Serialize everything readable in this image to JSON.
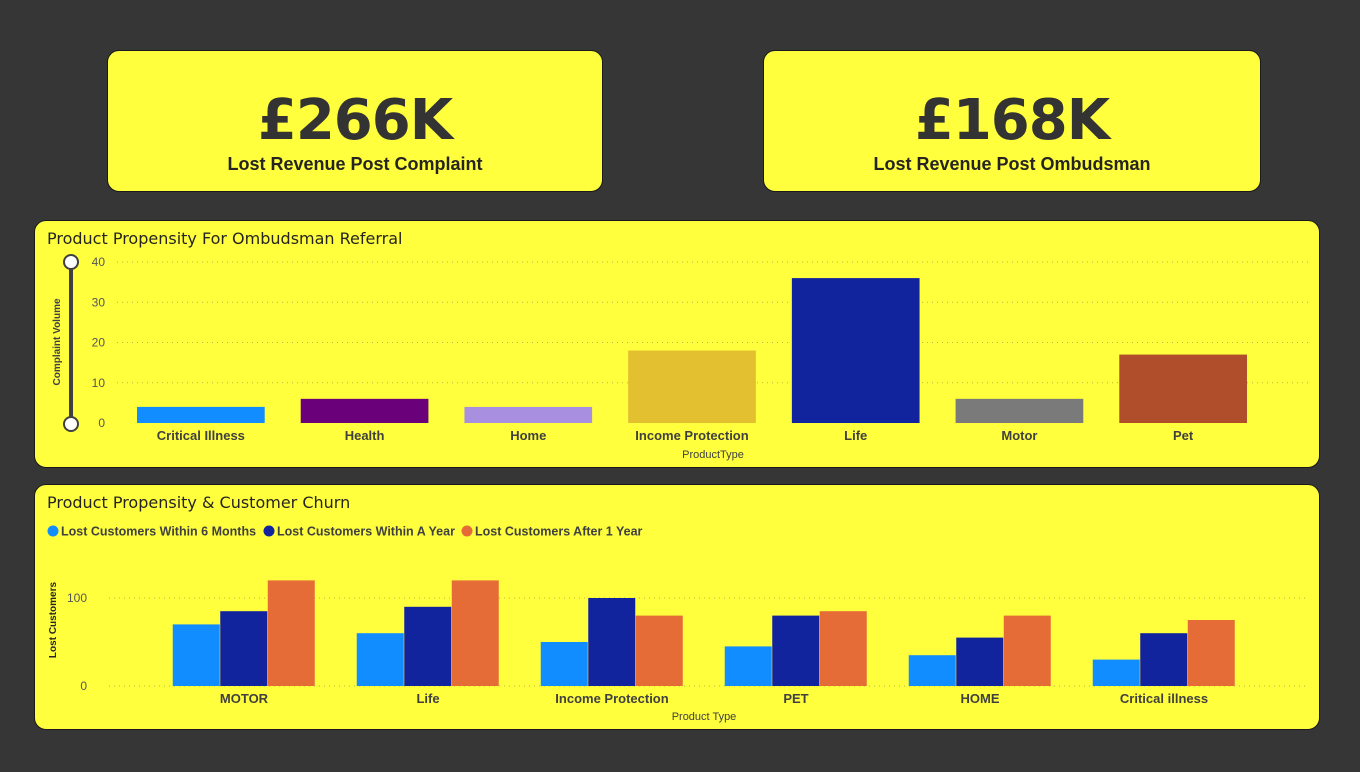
{
  "kpis": [
    {
      "value": "£266K",
      "label": "Lost Revenue Post Complaint"
    },
    {
      "value": "£168K",
      "label": "Lost Revenue Post Ombudsman"
    }
  ],
  "panels": [
    {
      "title": "Product Propensity For Ombudsman Referral"
    },
    {
      "title": "Product Propensity & Customer Churn"
    }
  ],
  "chart_data": [
    {
      "type": "bar",
      "title": "Product Propensity For Ombudsman Referral",
      "xlabel": "ProductType",
      "ylabel": "Complaint Volume",
      "ylim": [
        0,
        40
      ],
      "yticks": [
        0,
        10,
        20,
        30,
        40
      ],
      "grid": true,
      "categories": [
        "Critical Illness",
        "Health",
        "Home",
        "Income Protection",
        "Life",
        "Motor",
        "Pet"
      ],
      "values": [
        4,
        6,
        4,
        18,
        36,
        6,
        17
      ],
      "colors": [
        "#118dff",
        "#6b007b",
        "#a98fe0",
        "#e3c030",
        "#12239e",
        "#7a7a7a",
        "#b04e2b"
      ],
      "slider": true
    },
    {
      "type": "bar",
      "title": "Product Propensity & Customer Churn",
      "xlabel": "Product Type",
      "ylabel": "Lost Customers",
      "ylim": [
        0,
        135
      ],
      "yticks": [
        0,
        100
      ],
      "grid": true,
      "legend": "top-left",
      "categories": [
        "MOTOR",
        "Life",
        "Income Protection",
        "PET",
        "HOME",
        "Critical illness"
      ],
      "series": [
        {
          "name": "Lost Customers Within 6 Months",
          "color": "#118dff",
          "values": [
            70,
            60,
            50,
            45,
            35,
            30
          ]
        },
        {
          "name": "Lost Customers Within A Year",
          "color": "#12239e",
          "values": [
            85,
            90,
            100,
            80,
            55,
            60
          ]
        },
        {
          "name": "Lost Customers After 1 Year",
          "color": "#e66c37",
          "values": [
            120,
            120,
            80,
            85,
            80,
            75
          ]
        }
      ]
    }
  ]
}
